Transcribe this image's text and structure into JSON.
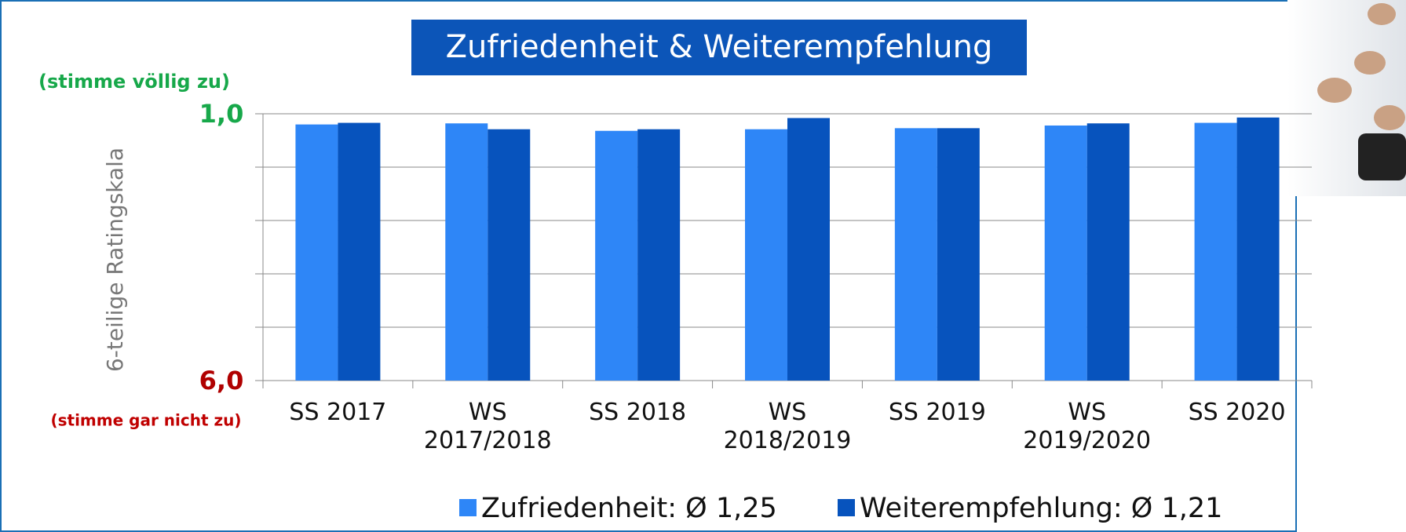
{
  "chart_data": {
    "type": "bar",
    "title": "Zufriedenheit & Weiterempfehlung",
    "y_label": "6-teilige Ratingskala",
    "annotations": [
      "(stimme völlig zu)",
      "(stimme gar nicht  zu)"
    ],
    "categories": [
      "SS 2017",
      "WS 2017/2018",
      "SS 2018",
      "WS 2018/2019",
      "SS 2019",
      "WS 2019/2020",
      "SS 2020"
    ],
    "series": [
      {
        "name": "Zufriedenheit: Ø 1,25",
        "color": "#2e86f7",
        "values": [
          1.2,
          1.18,
          1.32,
          1.29,
          1.27,
          1.22,
          1.17
        ]
      },
      {
        "name": "Weiterempfehlung: Ø 1,21",
        "color": "#0753bd",
        "values": [
          1.17,
          1.29,
          1.29,
          1.08,
          1.27,
          1.18,
          1.07
        ]
      }
    ],
    "ylim": [
      6,
      1
    ],
    "yticks": [
      {
        "value": 1,
        "label": "1,0"
      },
      {
        "value": 2,
        "label": null
      },
      {
        "value": 3,
        "label": null
      },
      {
        "value": 4,
        "label": null
      },
      {
        "value": 5,
        "label": null
      },
      {
        "value": 6,
        "label": "6,0"
      }
    ],
    "grid": true
  }
}
